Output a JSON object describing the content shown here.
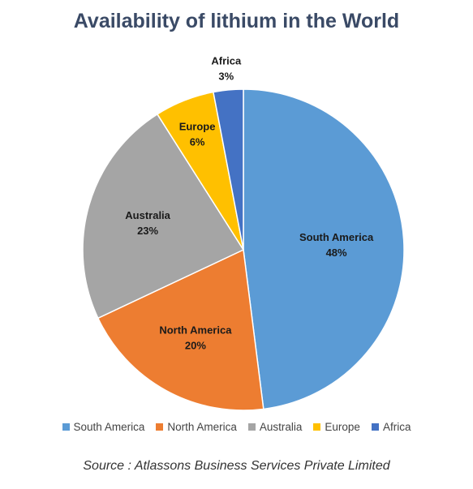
{
  "chart_data": {
    "type": "pie",
    "title": "Availability of lithium in the World",
    "categories": [
      "South America",
      "North America",
      "Australia",
      "Europe",
      "Africa"
    ],
    "values": [
      48,
      20,
      23,
      6,
      3
    ],
    "value_labels": [
      "48%",
      "20%",
      "23%",
      "6%",
      "3%"
    ],
    "colors": [
      "#5b9bd5",
      "#ed7d31",
      "#a5a5a5",
      "#ffc000",
      "#4472c4"
    ],
    "legend_position": "bottom",
    "source": "Source : Atlassons Business Services Private Limited"
  }
}
